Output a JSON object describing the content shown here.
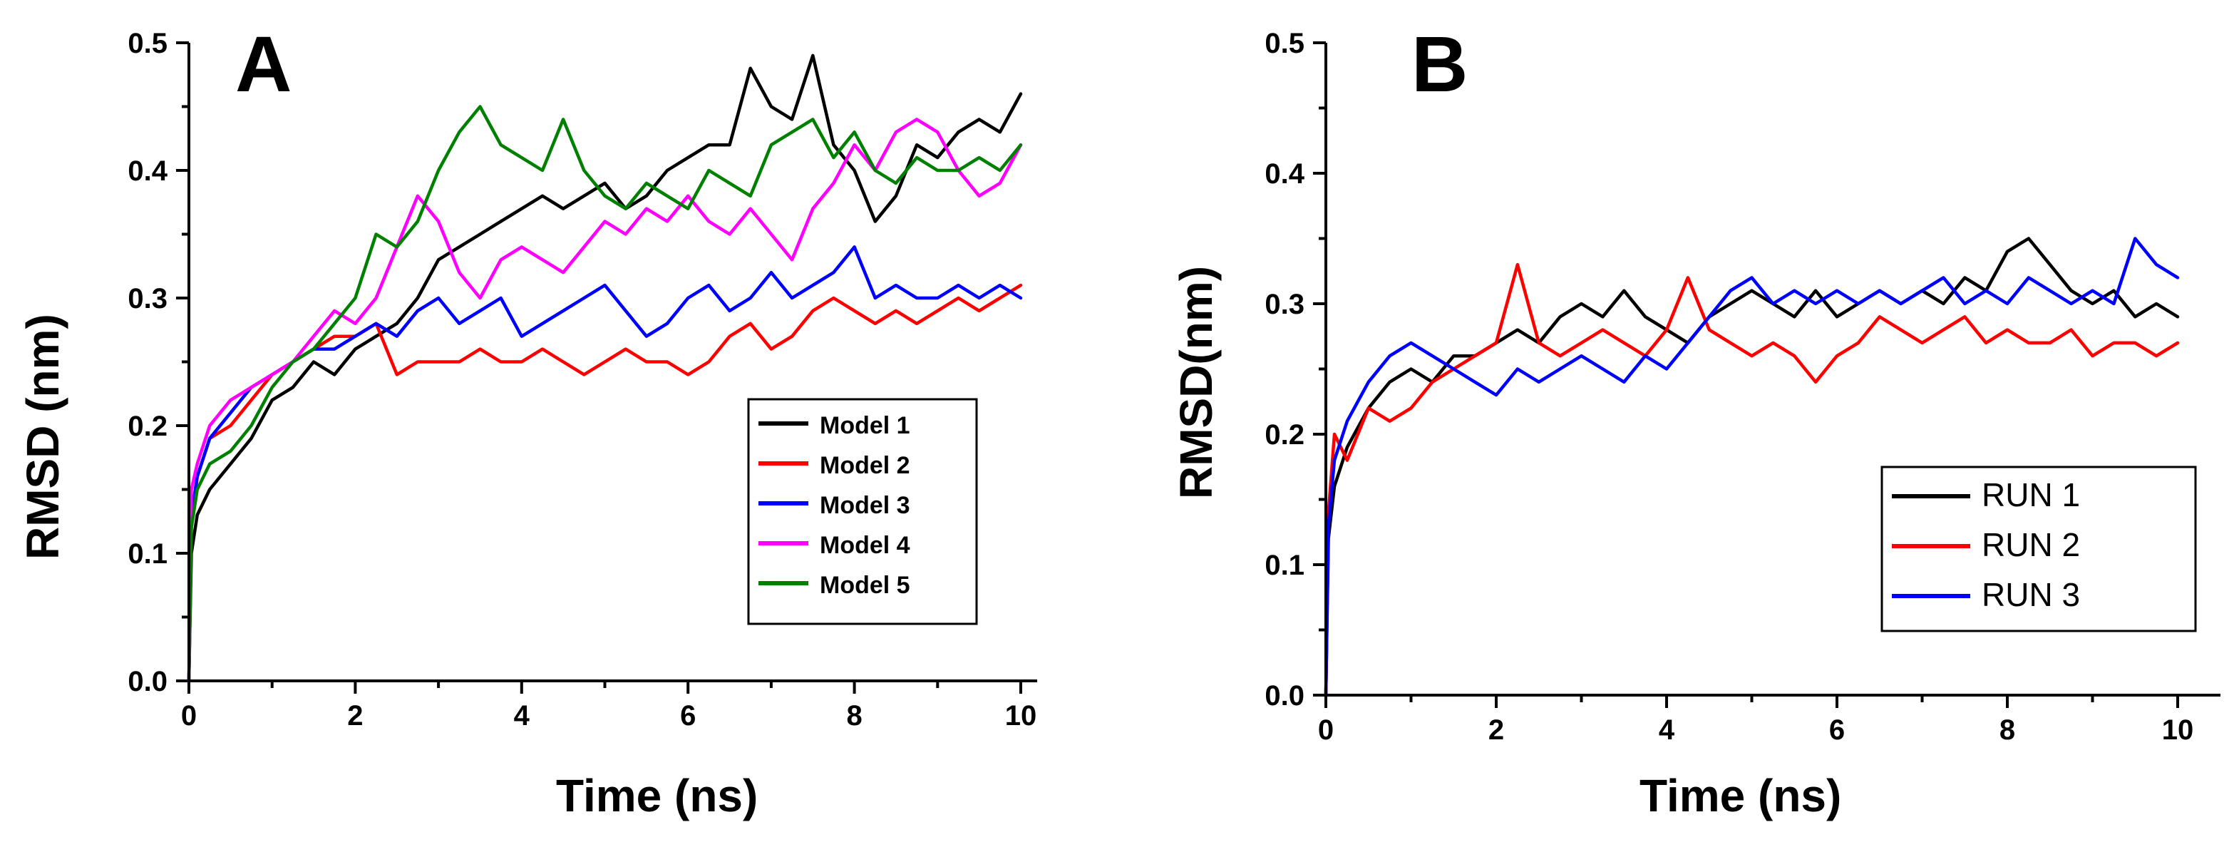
{
  "chart_data": [
    {
      "type": "line",
      "panel_label": "A",
      "xlabel": "Time (ns)",
      "ylabel": "RMSD (nm)",
      "xlim": [
        0,
        10
      ],
      "ylim": [
        0.0,
        0.5
      ],
      "xticks": [
        "0",
        "2",
        "4",
        "6",
        "8",
        "10"
      ],
      "yticks": [
        "0.0",
        "0.1",
        "0.2",
        "0.3",
        "0.4",
        "0.5"
      ],
      "legend_position": "right-middle",
      "series": [
        {
          "name": "Model 1",
          "color": "#000000",
          "x": [
            0,
            0.03,
            0.1,
            0.25,
            0.5,
            0.75,
            1.0,
            1.25,
            1.5,
            1.75,
            2.0,
            2.25,
            2.5,
            2.75,
            3.0,
            3.25,
            3.5,
            3.75,
            4.0,
            4.25,
            4.5,
            4.75,
            5.0,
            5.25,
            5.5,
            5.75,
            6.0,
            6.25,
            6.5,
            6.75,
            7.0,
            7.25,
            7.5,
            7.75,
            8.0,
            8.25,
            8.5,
            8.75,
            9.0,
            9.25,
            9.5,
            9.75,
            10.0
          ],
          "y": [
            0.0,
            0.1,
            0.13,
            0.15,
            0.17,
            0.19,
            0.22,
            0.23,
            0.25,
            0.24,
            0.26,
            0.27,
            0.28,
            0.3,
            0.33,
            0.34,
            0.35,
            0.36,
            0.37,
            0.38,
            0.37,
            0.38,
            0.39,
            0.37,
            0.38,
            0.4,
            0.41,
            0.42,
            0.42,
            0.48,
            0.45,
            0.44,
            0.49,
            0.42,
            0.4,
            0.36,
            0.38,
            0.42,
            0.41,
            0.43,
            0.44,
            0.43,
            0.46
          ]
        },
        {
          "name": "Model 2",
          "color": "#ff0000",
          "x": [
            0,
            0.03,
            0.1,
            0.25,
            0.5,
            0.75,
            1.0,
            1.25,
            1.5,
            1.75,
            2.0,
            2.25,
            2.5,
            2.75,
            3.0,
            3.25,
            3.5,
            3.75,
            4.0,
            4.25,
            4.5,
            4.75,
            5.0,
            5.25,
            5.5,
            5.75,
            6.0,
            6.25,
            6.5,
            6.75,
            7.0,
            7.25,
            7.5,
            7.75,
            8.0,
            8.25,
            8.5,
            8.75,
            9.0,
            9.25,
            9.5,
            9.75,
            10.0
          ],
          "y": [
            0.0,
            0.12,
            0.16,
            0.19,
            0.2,
            0.22,
            0.24,
            0.25,
            0.26,
            0.27,
            0.27,
            0.28,
            0.24,
            0.25,
            0.25,
            0.25,
            0.26,
            0.25,
            0.25,
            0.26,
            0.25,
            0.24,
            0.25,
            0.26,
            0.25,
            0.25,
            0.24,
            0.25,
            0.27,
            0.28,
            0.26,
            0.27,
            0.29,
            0.3,
            0.29,
            0.28,
            0.29,
            0.28,
            0.29,
            0.3,
            0.29,
            0.3,
            0.31
          ]
        },
        {
          "name": "Model 3",
          "color": "#0000ff",
          "x": [
            0,
            0.03,
            0.1,
            0.25,
            0.5,
            0.75,
            1.0,
            1.25,
            1.5,
            1.75,
            2.0,
            2.25,
            2.5,
            2.75,
            3.0,
            3.25,
            3.5,
            3.75,
            4.0,
            4.25,
            4.5,
            4.75,
            5.0,
            5.25,
            5.5,
            5.75,
            6.0,
            6.25,
            6.5,
            6.75,
            7.0,
            7.25,
            7.5,
            7.75,
            8.0,
            8.25,
            8.5,
            8.75,
            9.0,
            9.25,
            9.5,
            9.75,
            10.0
          ],
          "y": [
            0.0,
            0.13,
            0.16,
            0.19,
            0.21,
            0.23,
            0.24,
            0.25,
            0.26,
            0.26,
            0.27,
            0.28,
            0.27,
            0.29,
            0.3,
            0.28,
            0.29,
            0.3,
            0.27,
            0.28,
            0.29,
            0.3,
            0.31,
            0.29,
            0.27,
            0.28,
            0.3,
            0.31,
            0.29,
            0.3,
            0.32,
            0.3,
            0.31,
            0.32,
            0.34,
            0.3,
            0.31,
            0.3,
            0.3,
            0.31,
            0.3,
            0.31,
            0.3
          ]
        },
        {
          "name": "Model 4",
          "color": "#ff00ff",
          "x": [
            0,
            0.03,
            0.1,
            0.25,
            0.5,
            0.75,
            1.0,
            1.25,
            1.5,
            1.75,
            2.0,
            2.25,
            2.5,
            2.75,
            3.0,
            3.25,
            3.5,
            3.75,
            4.0,
            4.25,
            4.5,
            4.75,
            5.0,
            5.25,
            5.5,
            5.75,
            6.0,
            6.25,
            6.5,
            6.75,
            7.0,
            7.25,
            7.5,
            7.75,
            8.0,
            8.25,
            8.5,
            8.75,
            9.0,
            9.25,
            9.5,
            9.75,
            10.0
          ],
          "y": [
            0.0,
            0.15,
            0.17,
            0.2,
            0.22,
            0.23,
            0.24,
            0.25,
            0.27,
            0.29,
            0.28,
            0.3,
            0.34,
            0.38,
            0.36,
            0.32,
            0.3,
            0.33,
            0.34,
            0.33,
            0.32,
            0.34,
            0.36,
            0.35,
            0.37,
            0.36,
            0.38,
            0.36,
            0.35,
            0.37,
            0.35,
            0.33,
            0.37,
            0.39,
            0.42,
            0.4,
            0.43,
            0.44,
            0.43,
            0.4,
            0.38,
            0.39,
            0.42
          ]
        },
        {
          "name": "Model 5",
          "color": "#008000",
          "x": [
            0,
            0.03,
            0.1,
            0.25,
            0.5,
            0.75,
            1.0,
            1.25,
            1.5,
            1.75,
            2.0,
            2.25,
            2.5,
            2.75,
            3.0,
            3.25,
            3.5,
            3.75,
            4.0,
            4.25,
            4.5,
            4.75,
            5.0,
            5.25,
            5.5,
            5.75,
            6.0,
            6.25,
            6.5,
            6.75,
            7.0,
            7.25,
            7.5,
            7.75,
            8.0,
            8.25,
            8.5,
            8.75,
            9.0,
            9.25,
            9.5,
            9.75,
            10.0
          ],
          "y": [
            0.0,
            0.12,
            0.15,
            0.17,
            0.18,
            0.2,
            0.23,
            0.25,
            0.26,
            0.28,
            0.3,
            0.35,
            0.34,
            0.36,
            0.4,
            0.43,
            0.45,
            0.42,
            0.41,
            0.4,
            0.44,
            0.4,
            0.38,
            0.37,
            0.39,
            0.38,
            0.37,
            0.4,
            0.39,
            0.38,
            0.42,
            0.43,
            0.44,
            0.41,
            0.43,
            0.4,
            0.39,
            0.41,
            0.4,
            0.4,
            0.41,
            0.4,
            0.42
          ]
        }
      ]
    },
    {
      "type": "line",
      "panel_label": "B",
      "xlabel": "Time (ns)",
      "ylabel": "RMSD(nm)",
      "xlim": [
        0,
        10
      ],
      "ylim": [
        0.0,
        0.5
      ],
      "xticks": [
        "0",
        "2",
        "4",
        "6",
        "8",
        "10"
      ],
      "yticks": [
        "0.0",
        "0.1",
        "0.2",
        "0.3",
        "0.4",
        "0.5"
      ],
      "legend_position": "right-middle",
      "series": [
        {
          "name": "RUN 1",
          "color": "#000000",
          "x": [
            0,
            0.03,
            0.1,
            0.25,
            0.5,
            0.75,
            1.0,
            1.25,
            1.5,
            1.75,
            2.0,
            2.25,
            2.5,
            2.75,
            3.0,
            3.25,
            3.5,
            3.75,
            4.0,
            4.25,
            4.5,
            4.75,
            5.0,
            5.25,
            5.5,
            5.75,
            6.0,
            6.25,
            6.5,
            6.75,
            7.0,
            7.25,
            7.5,
            7.75,
            8.0,
            8.25,
            8.5,
            8.75,
            9.0,
            9.25,
            9.5,
            9.75,
            10.0
          ],
          "y": [
            0.0,
            0.12,
            0.16,
            0.19,
            0.22,
            0.24,
            0.25,
            0.24,
            0.26,
            0.26,
            0.27,
            0.28,
            0.27,
            0.29,
            0.3,
            0.29,
            0.31,
            0.29,
            0.28,
            0.27,
            0.29,
            0.3,
            0.31,
            0.3,
            0.29,
            0.31,
            0.29,
            0.3,
            0.31,
            0.3,
            0.31,
            0.3,
            0.32,
            0.31,
            0.34,
            0.35,
            0.33,
            0.31,
            0.3,
            0.31,
            0.29,
            0.3,
            0.29
          ]
        },
        {
          "name": "RUN 2",
          "color": "#ff0000",
          "x": [
            0,
            0.03,
            0.1,
            0.25,
            0.5,
            0.75,
            1.0,
            1.25,
            1.5,
            1.75,
            2.0,
            2.25,
            2.5,
            2.75,
            3.0,
            3.25,
            3.5,
            3.75,
            4.0,
            4.25,
            4.5,
            4.75,
            5.0,
            5.25,
            5.5,
            5.75,
            6.0,
            6.25,
            6.5,
            6.75,
            7.0,
            7.25,
            7.5,
            7.75,
            8.0,
            8.25,
            8.5,
            8.75,
            9.0,
            9.25,
            9.5,
            9.75,
            10.0
          ],
          "y": [
            0.0,
            0.14,
            0.2,
            0.18,
            0.22,
            0.21,
            0.22,
            0.24,
            0.25,
            0.26,
            0.27,
            0.33,
            0.27,
            0.26,
            0.27,
            0.28,
            0.27,
            0.26,
            0.28,
            0.32,
            0.28,
            0.27,
            0.26,
            0.27,
            0.26,
            0.24,
            0.26,
            0.27,
            0.29,
            0.28,
            0.27,
            0.28,
            0.29,
            0.27,
            0.28,
            0.27,
            0.27,
            0.28,
            0.26,
            0.27,
            0.27,
            0.26,
            0.27
          ]
        },
        {
          "name": "RUN 3",
          "color": "#0000ff",
          "x": [
            0,
            0.03,
            0.1,
            0.25,
            0.5,
            0.75,
            1.0,
            1.25,
            1.5,
            1.75,
            2.0,
            2.25,
            2.5,
            2.75,
            3.0,
            3.25,
            3.5,
            3.75,
            4.0,
            4.25,
            4.5,
            4.75,
            5.0,
            5.25,
            5.5,
            5.75,
            6.0,
            6.25,
            6.5,
            6.75,
            7.0,
            7.25,
            7.5,
            7.75,
            8.0,
            8.25,
            8.5,
            8.75,
            9.0,
            9.25,
            9.5,
            9.75,
            10.0
          ],
          "y": [
            0.0,
            0.13,
            0.18,
            0.21,
            0.24,
            0.26,
            0.27,
            0.26,
            0.25,
            0.24,
            0.23,
            0.25,
            0.24,
            0.25,
            0.26,
            0.25,
            0.24,
            0.26,
            0.25,
            0.27,
            0.29,
            0.31,
            0.32,
            0.3,
            0.31,
            0.3,
            0.31,
            0.3,
            0.31,
            0.3,
            0.31,
            0.32,
            0.3,
            0.31,
            0.3,
            0.32,
            0.31,
            0.3,
            0.31,
            0.3,
            0.35,
            0.33,
            0.32
          ]
        }
      ]
    }
  ]
}
